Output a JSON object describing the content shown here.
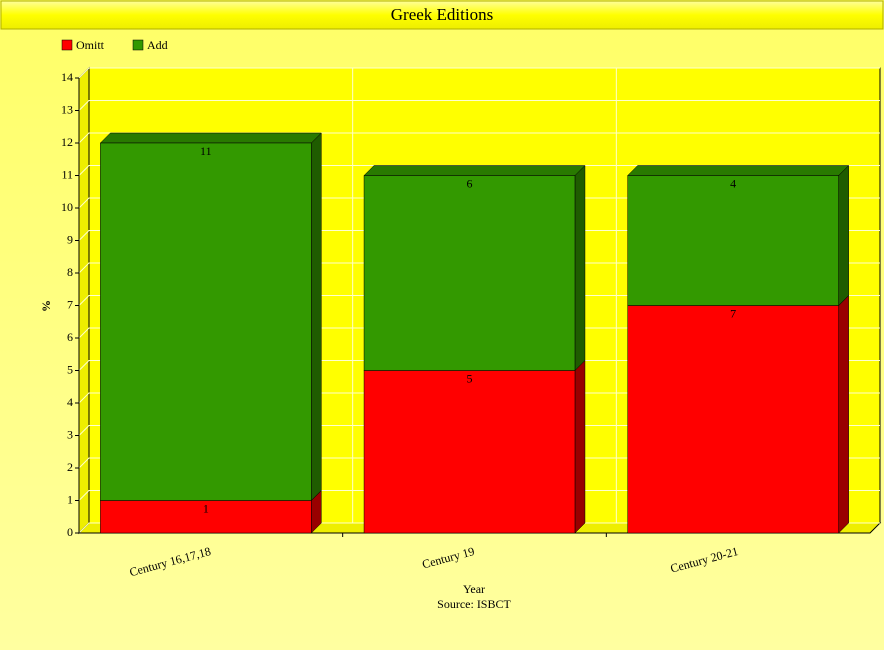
{
  "chart_data": {
    "type": "stacked-bar-3d",
    "title": "Greek Editions",
    "categories": [
      "Century 16,17,18",
      "Century 19",
      "Century 20-21"
    ],
    "series": [
      {
        "name": "Omitt",
        "color": "#ff0000",
        "values": [
          1,
          5,
          7
        ]
      },
      {
        "name": "Add",
        "color": "#339900",
        "values": [
          11,
          6,
          4
        ]
      }
    ],
    "ylim": [
      0,
      14
    ],
    "yticks": [
      0,
      1,
      2,
      3,
      4,
      5,
      6,
      7,
      8,
      9,
      10,
      11,
      12,
      13,
      14
    ],
    "x_label": "Year",
    "subtitle": "Source: ISBCT",
    "y_label": "%",
    "grid": true,
    "legend": "top-left"
  }
}
